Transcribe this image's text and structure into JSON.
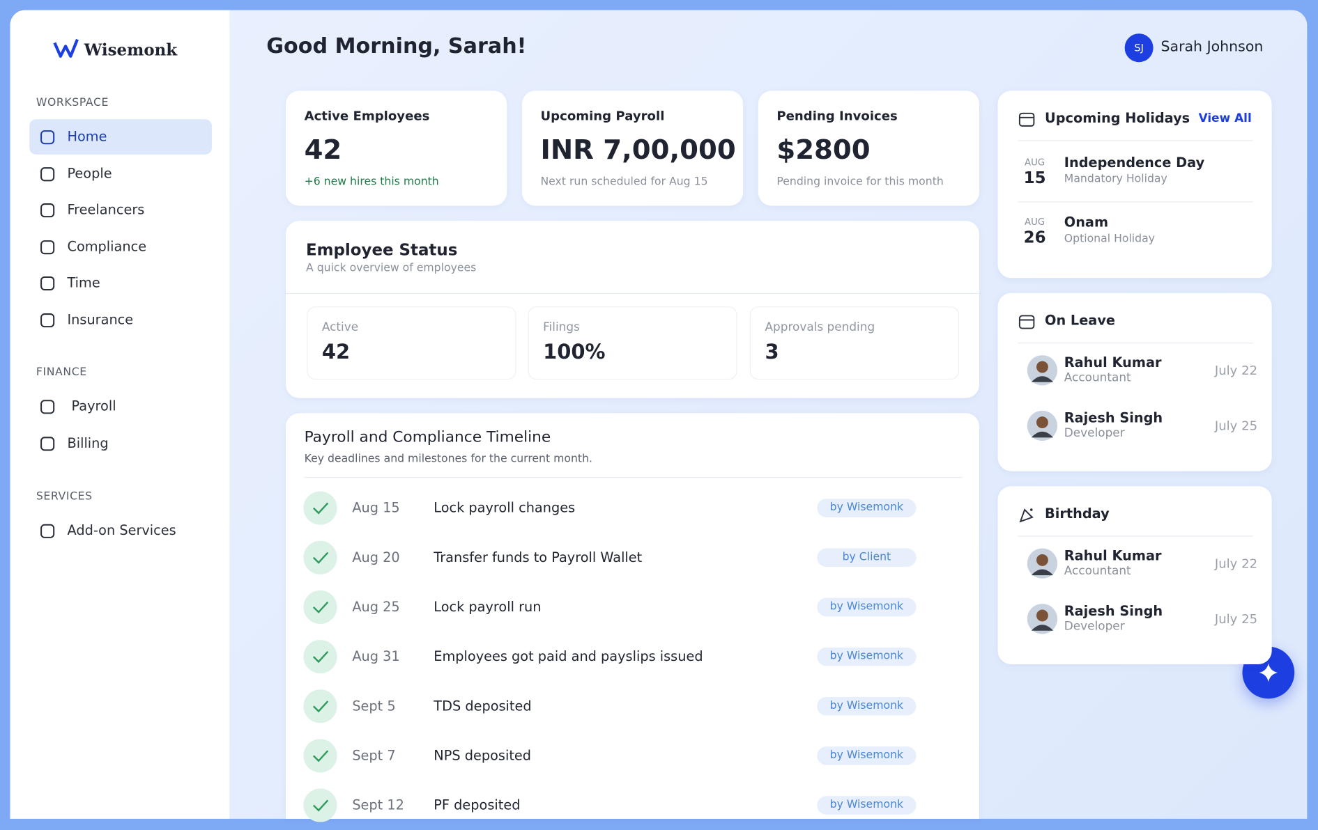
{
  "brand": "Wisemonk",
  "greeting": "Good Morning, Sarah!",
  "user": {
    "initials": "SJ",
    "name": "Sarah Johnson"
  },
  "sidebar": {
    "sections": [
      {
        "title": "WORKSPACE",
        "items": [
          "Home",
          "People",
          "Freelancers",
          "Compliance",
          "Time",
          "Insurance"
        ]
      },
      {
        "title": "FINANCE",
        "items": [
          "Payroll",
          "Billing"
        ]
      },
      {
        "title": "SERVICES",
        "items": [
          "Add-on Services"
        ]
      }
    ]
  },
  "stats": [
    {
      "label": "Active Employees",
      "value": "42",
      "note": "+6 new hires this month"
    },
    {
      "label": "Upcoming Payroll",
      "value": "INR 7,00,000",
      "note": "Next run scheduled for Aug 15"
    },
    {
      "label": "Pending Invoices",
      "value": "$2800",
      "note": "Pending invoice for this month"
    }
  ],
  "employee_status": {
    "title": "Employee Status",
    "subtitle": "A quick overview of employees",
    "tiles": [
      {
        "label": "Active",
        "value": "42"
      },
      {
        "label": "Filings",
        "value": "100%"
      },
      {
        "label": "Approvals pending",
        "value": "3"
      }
    ]
  },
  "timeline": {
    "title": "Payroll and Compliance Timeline",
    "subtitle": "Key deadlines and milestones for the current month.",
    "rows": [
      {
        "date": "Aug 15",
        "task": "Lock payroll changes",
        "owner": "by Wisemonk"
      },
      {
        "date": "Aug 20",
        "task": "Transfer funds to Payroll Wallet",
        "owner": "by Client"
      },
      {
        "date": "Aug 25",
        "task": "Lock payroll run",
        "owner": "by Wisemonk"
      },
      {
        "date": "Aug 31",
        "task": "Employees got paid and payslips issued",
        "owner": "by Wisemonk"
      },
      {
        "date": "Sept 5",
        "task": "TDS deposited",
        "owner": "by Wisemonk"
      },
      {
        "date": "Sept 7",
        "task": "NPS deposited",
        "owner": "by Wisemonk"
      },
      {
        "date": "Sept 12",
        "task": "PF deposited",
        "owner": "by Wisemonk"
      }
    ]
  },
  "holidays": {
    "title": "Upcoming Holidays",
    "action": "View All",
    "items": [
      {
        "month": "AUG",
        "day": "15",
        "name": "Independence Day",
        "type": "Mandatory Holiday"
      },
      {
        "month": "AUG",
        "day": "26",
        "name": "Onam",
        "type": "Optional Holiday"
      }
    ]
  },
  "on_leave": {
    "title": "On Leave",
    "people": [
      {
        "name": "Rahul Kumar",
        "role": "Accountant",
        "date": "July 22"
      },
      {
        "name": "Rajesh Singh",
        "role": "Developer",
        "date": "July 25"
      }
    ]
  },
  "birthday": {
    "title": "Birthday",
    "people": [
      {
        "name": "Rahul Kumar",
        "role": "Accountant",
        "date": "July 22"
      },
      {
        "name": "Rajesh Singh",
        "role": "Developer",
        "date": "July 25"
      }
    ]
  }
}
